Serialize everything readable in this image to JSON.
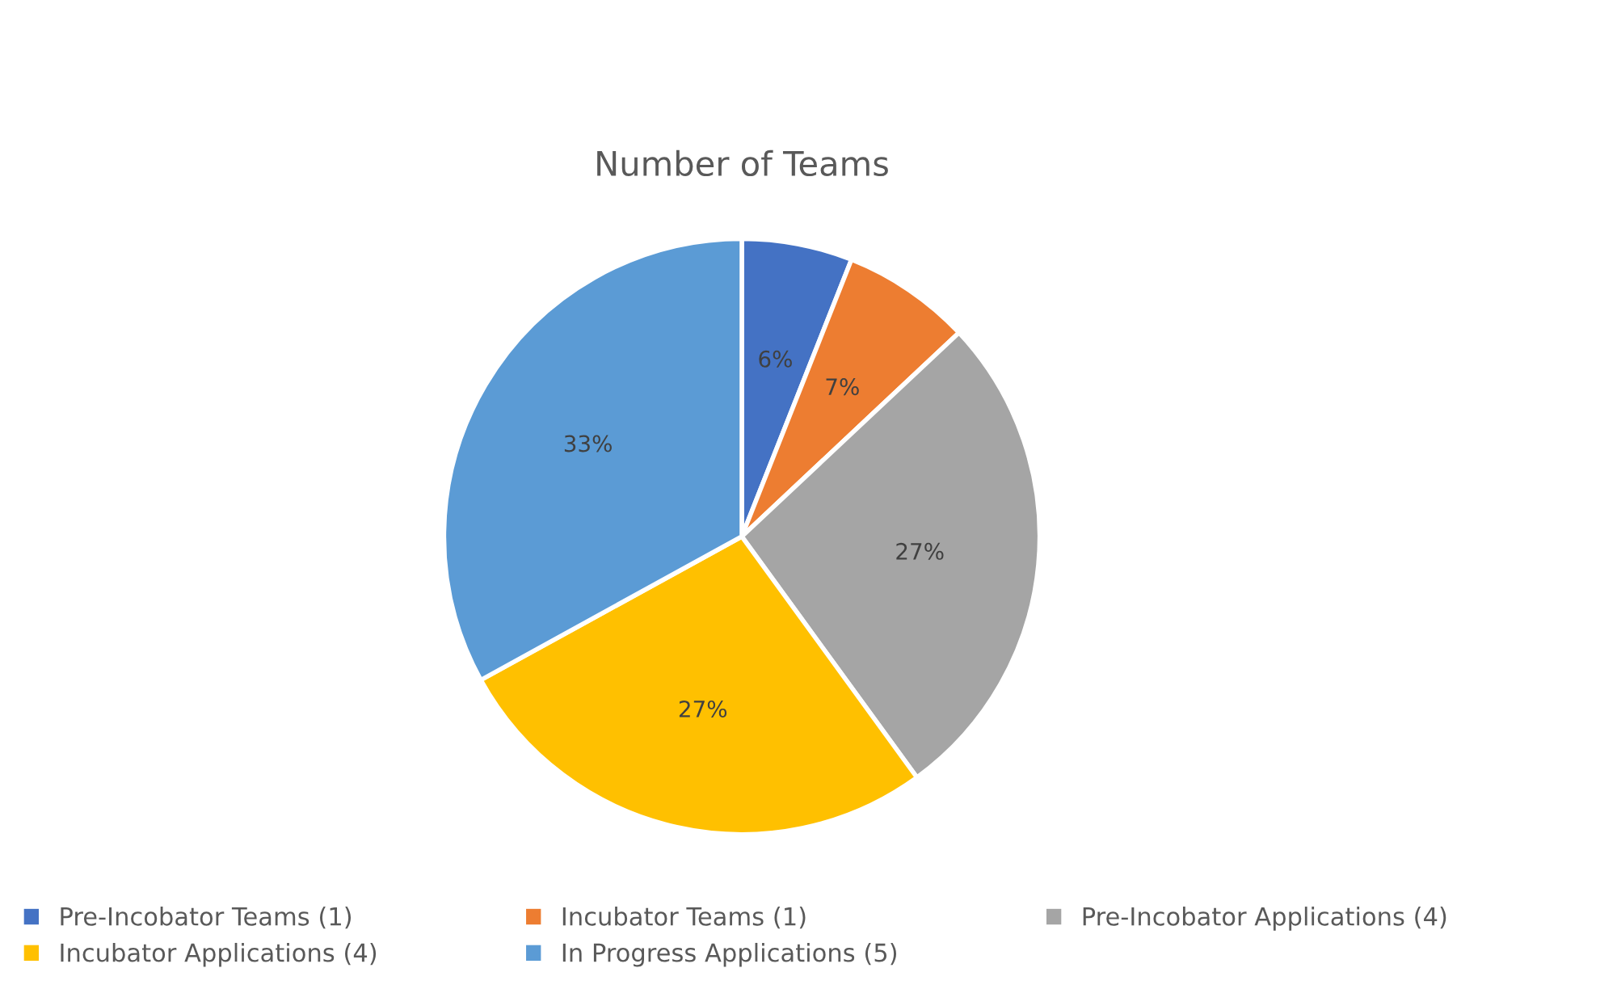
{
  "chart_data": {
    "type": "pie",
    "title": "Number of Teams",
    "categories": [
      "Pre-Incobator Teams (1)",
      "Incubator Teams (1)",
      "Pre-Incobator Applications (4)",
      "Incubator Applications (4)",
      "In Progress Applications (5)"
    ],
    "values": [
      6,
      7,
      27,
      27,
      33
    ],
    "colors": [
      "#4472c4",
      "#ed7d31",
      "#a5a5a5",
      "#ffc000",
      "#5b9bd5"
    ],
    "value_labels": [
      "6%",
      "7%",
      "27%",
      "27%",
      "33%"
    ],
    "legend": "bottom"
  }
}
